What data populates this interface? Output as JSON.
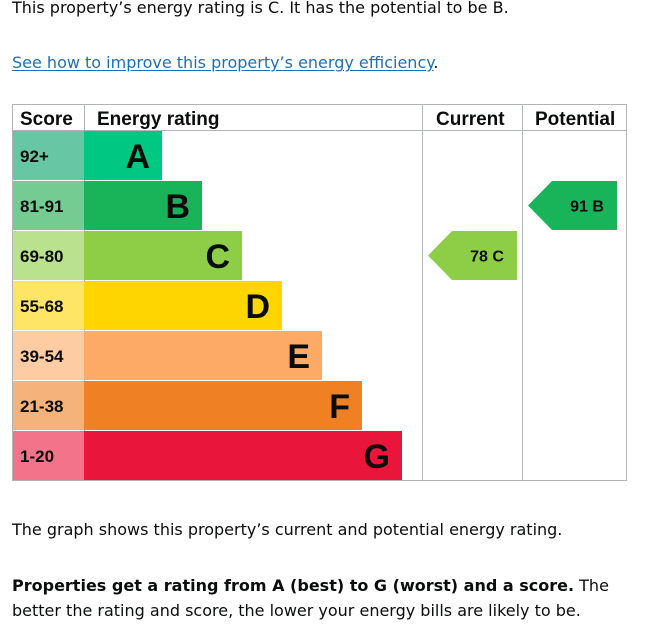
{
  "intro": {
    "text": "This property’s energy rating is C. It has the potential to be B."
  },
  "improve_link": {
    "label": "See how to improve this property’s energy efficiency",
    "suffix": "."
  },
  "graph": {
    "headers": {
      "score": "Score",
      "energy_rating": "Energy rating",
      "current": "Current",
      "potential": "Potential"
    },
    "bands": [
      {
        "letter": "A",
        "score_range": "92+",
        "color": "#00c781",
        "score_color": "#67c6a4"
      },
      {
        "letter": "B",
        "score_range": "81-91",
        "color": "#19b459",
        "score_color": "#75cc93"
      },
      {
        "letter": "C",
        "score_range": "69-80",
        "color": "#8dce46",
        "score_color": "#b9e18e"
      },
      {
        "letter": "D",
        "score_range": "55-68",
        "color": "#ffd500",
        "score_color": "#ffe566"
      },
      {
        "letter": "E",
        "score_range": "39-54",
        "color": "#fcaa65",
        "score_color": "#fdcca3"
      },
      {
        "letter": "F",
        "score_range": "21-38",
        "color": "#ef8023",
        "score_color": "#f5b37b"
      },
      {
        "letter": "G",
        "score_range": "1-20",
        "color": "#e9153b",
        "score_color": "#f2738a"
      }
    ],
    "current": {
      "score": 78,
      "letter": "C",
      "label": "78  C",
      "color": "#8dce46"
    },
    "potential": {
      "score": 91,
      "letter": "B",
      "label": "91  B",
      "color": "#19b459"
    },
    "border_color": "#b1b4b6"
  },
  "caption": {
    "text": "The graph shows this property’s current and potential energy rating."
  },
  "rating_info": {
    "bold": "Properties get a rating from A (best) to G (worst) and a score.",
    "rest": " The better the rating and score, the lower your energy bills are likely to be."
  }
}
